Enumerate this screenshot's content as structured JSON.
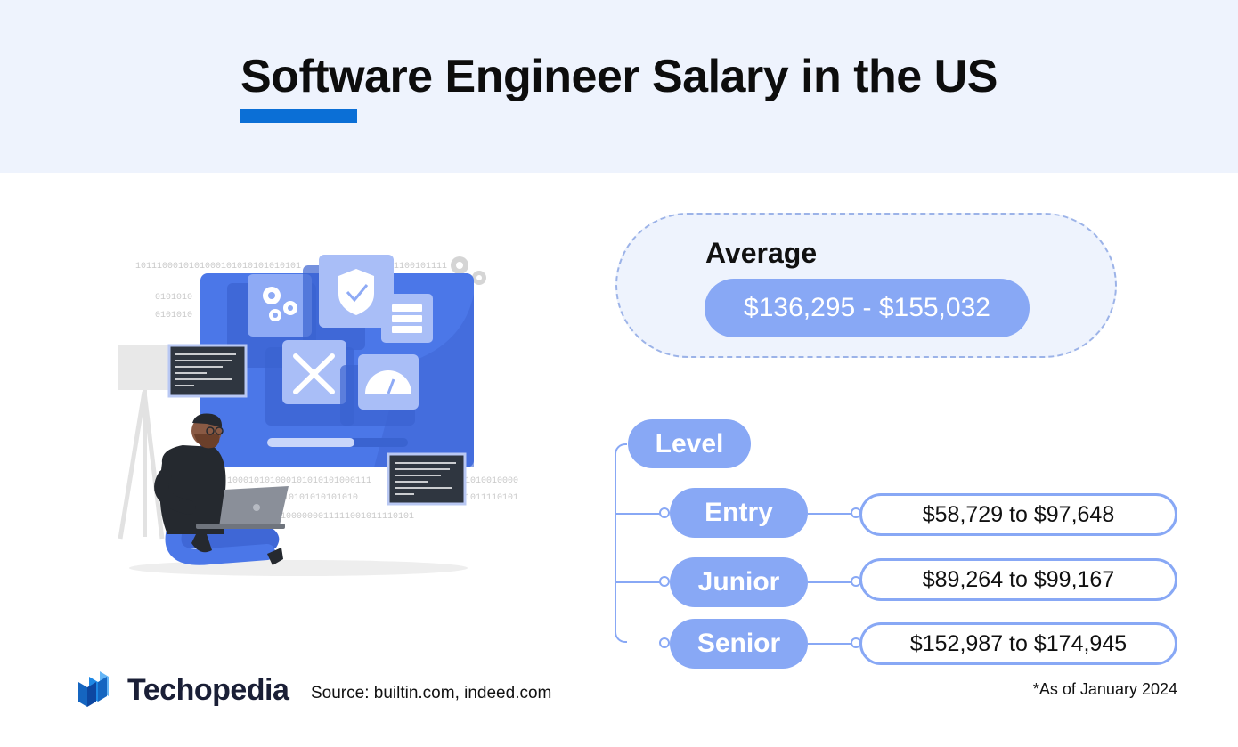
{
  "header": {
    "title": "Software Engineer Salary in the US"
  },
  "average": {
    "label": "Average",
    "value": "$136,295 - $155,032"
  },
  "levels": {
    "heading": "Level",
    "items": [
      {
        "label": "Entry",
        "range": "$58,729 to $97,648"
      },
      {
        "label": "Junior",
        "range": "$89,264 to $99,167"
      },
      {
        "label": "Senior",
        "range": "$152,987 to $174,945"
      }
    ]
  },
  "footer": {
    "brand": "Techopedia",
    "source": "Source: builtin.com, indeed.com",
    "as_of": "*As of January 2024"
  },
  "illustration": {
    "binary_lines": [
      "1011100010101000101010101010101",
      "0101010",
      "0101010",
      "1100101111",
      "100010101000101010101000111",
      "1010100010101010101010",
      "010101000000011111001011110101",
      "1010010000",
      "1011110101"
    ]
  },
  "colors": {
    "accent": "#0b6fd6",
    "pill": "#88a8f5",
    "header_bg": "#eef3fd",
    "screen": "#4b77e8"
  }
}
